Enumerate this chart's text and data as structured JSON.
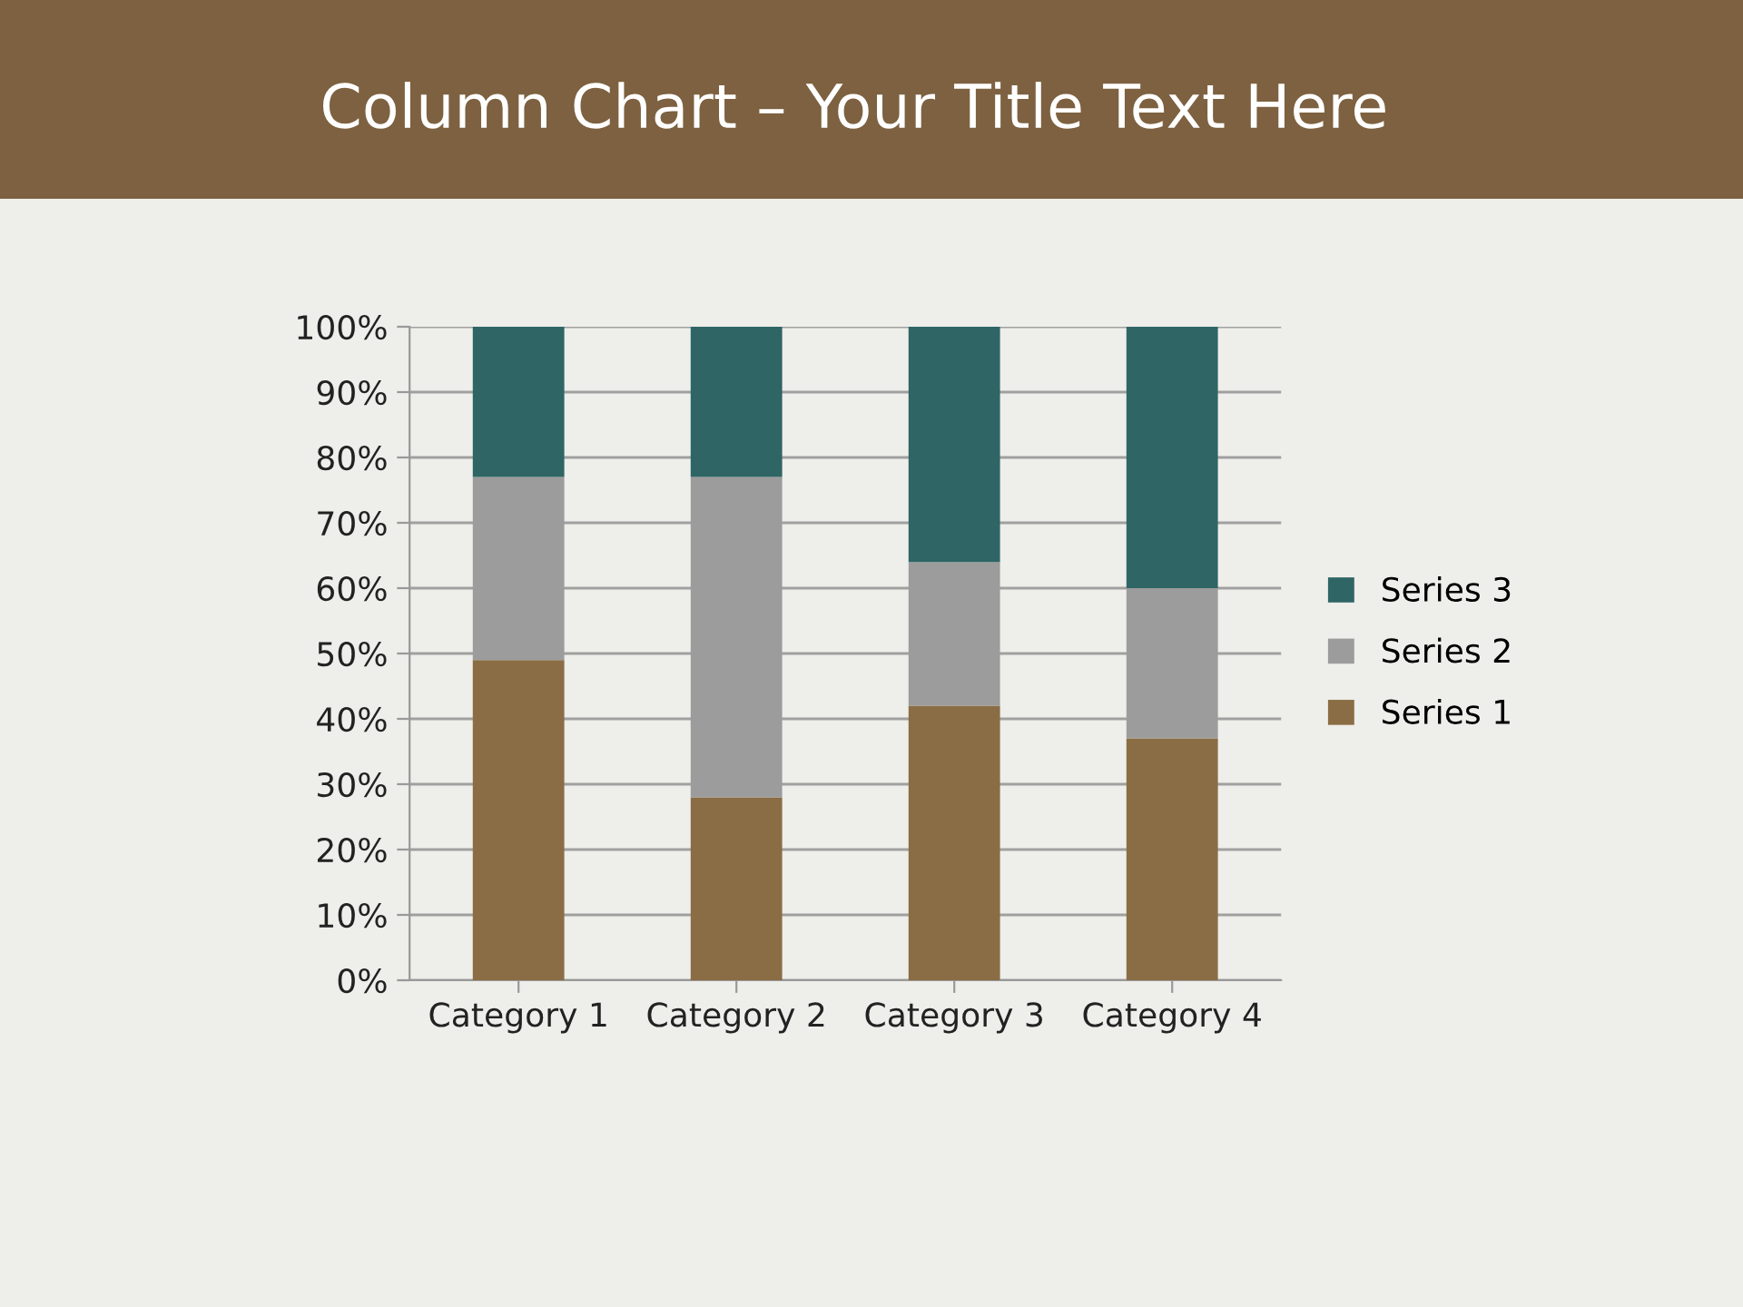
{
  "chart_data": {
    "type": "bar",
    "title": "Column Chart – Your Title Text Here",
    "categories": [
      "Category 1",
      "Category 2",
      "Category 3",
      "Category 4"
    ],
    "stacked": true,
    "series": [
      {
        "name": "Series 1",
        "color": "#8a6d45",
        "values": [
          49,
          28,
          42,
          37
        ]
      },
      {
        "name": "Series 2",
        "color": "#9c9c9c",
        "values": [
          28,
          49,
          22,
          23
        ]
      },
      {
        "name": "Series 3",
        "color": "#2f6565",
        "values": [
          23,
          23,
          36,
          40
        ]
      }
    ],
    "ylim": [
      0,
      100
    ],
    "yticks": [
      {
        "value": 0,
        "label": "0%"
      },
      {
        "value": 10,
        "label": "10%"
      },
      {
        "value": 20,
        "label": "20%"
      },
      {
        "value": 30,
        "label": "30%"
      },
      {
        "value": 40,
        "label": "40%"
      },
      {
        "value": 50,
        "label": "50%"
      },
      {
        "value": 60,
        "label": "60%"
      },
      {
        "value": 70,
        "label": "70%"
      },
      {
        "value": 80,
        "label": "80%"
      },
      {
        "value": 90,
        "label": "90%"
      },
      {
        "value": 100,
        "label": "100%"
      }
    ],
    "grid": "y",
    "legend": "right"
  }
}
